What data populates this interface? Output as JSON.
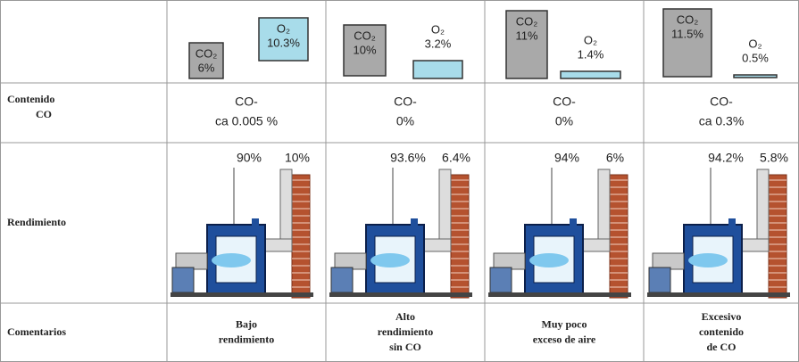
{
  "header": {
    "columns": [
      {
        "co2": {
          "name": "CO₂",
          "value": "6%"
        },
        "o2": {
          "name": "O₂",
          "value": "10.3%"
        }
      },
      {
        "co2": {
          "name": "CO₂",
          "value": "10%"
        },
        "o2": {
          "name": "O₂",
          "value": "3.2%"
        }
      },
      {
        "co2": {
          "name": "CO₂",
          "value": "11%"
        },
        "o2": {
          "name": "O₂",
          "value": "1.4%"
        }
      },
      {
        "co2": {
          "name": "CO₂",
          "value": "11.5%"
        },
        "o2": {
          "name": "O₂",
          "value": "0.5%"
        }
      }
    ]
  },
  "rows": [
    {
      "label": [
        "Contenido",
        "CO"
      ],
      "cells": [
        [
          "CO-",
          "ca 0.005 %"
        ],
        [
          "CO-",
          "0%"
        ],
        [
          "CO-",
          "0%"
        ],
        [
          "CO-",
          "ca 0.3%"
        ]
      ]
    },
    {
      "label": [
        "Rendimiento"
      ],
      "cells": [
        [
          "90%",
          "10%"
        ],
        [
          "93.6%",
          "6.4%"
        ],
        [
          "94%",
          "6%"
        ],
        [
          "94.2%",
          "5.8%"
        ]
      ]
    },
    {
      "label": [
        "Comentarios"
      ],
      "cells": [
        [
          "Bajo",
          "rendimiento"
        ],
        [
          "Alto",
          "rendimiento",
          "sin CO"
        ],
        [
          "Muy poco",
          "exceso de aire"
        ],
        [
          "Excesivo",
          "contenido",
          "de CO"
        ]
      ]
    }
  ]
}
